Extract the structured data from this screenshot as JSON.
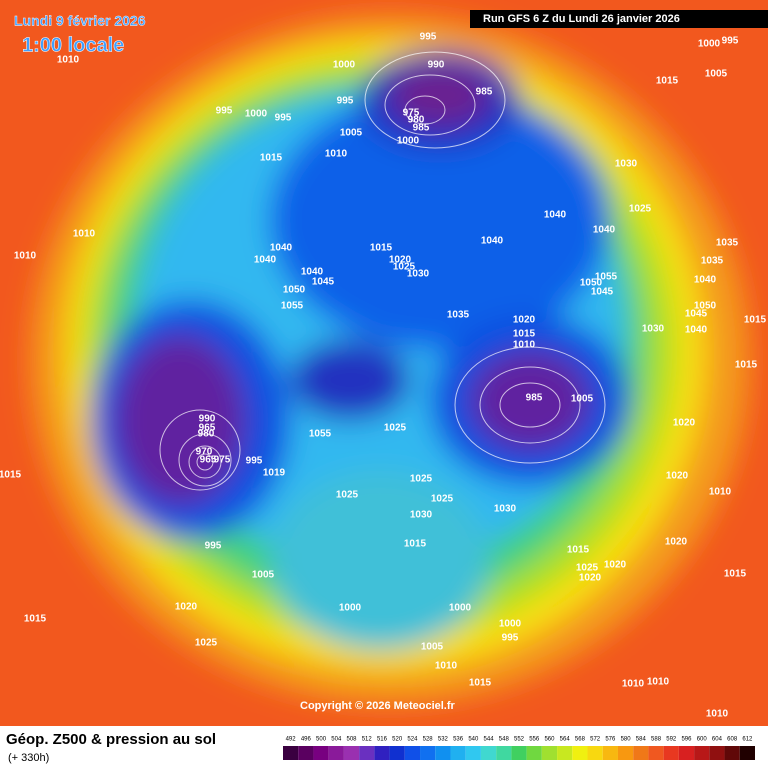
{
  "header": {
    "date": "Lundi 9 février 2026",
    "local_time": "1:00 locale",
    "run": "Run GFS 6 Z du Lundi 26 janvier 2026"
  },
  "map": {
    "isobar_labels": [
      "1010",
      "995",
      "1000",
      "995",
      "1000",
      "990",
      "1015",
      "1005",
      "985",
      "995",
      "1000",
      "995",
      "995",
      "975",
      "980",
      "985",
      "1005",
      "1000",
      "1015",
      "1010",
      "1030",
      "1025",
      "1040",
      "1040",
      "1040",
      "1010",
      "1010",
      "1040",
      "1040",
      "1015",
      "1020",
      "1025",
      "1030",
      "1035",
      "1035",
      "1040",
      "1040",
      "1045",
      "1050",
      "1055",
      "1055",
      "1050",
      "1045",
      "1050",
      "1045",
      "1040",
      "1035",
      "1020",
      "1015",
      "1010",
      "1030",
      "1015",
      "1015",
      "985",
      "1005",
      "990",
      "965",
      "980",
      "970",
      "965",
      "975",
      "995",
      "1019",
      "1025",
      "1055",
      "1020",
      "1025",
      "1025",
      "1025",
      "1030",
      "1030",
      "1020",
      "1010",
      "1015",
      "995",
      "1015",
      "1015",
      "1020",
      "1025",
      "1020",
      "1020",
      "1015",
      "1005",
      "1000",
      "1000",
      "1020",
      "1015",
      "1000",
      "995",
      "1025",
      "1005",
      "1010",
      "1015",
      "1010",
      "1010",
      "1010"
    ],
    "copyright": "Copyright © 2026 Meteociel.fr"
  },
  "footer": {
    "title": "Géop. Z500 & pression au sol",
    "lead_time": "(+ 330h)",
    "scale": [
      492,
      496,
      500,
      504,
      508,
      512,
      516,
      520,
      524,
      528,
      532,
      536,
      540,
      544,
      548,
      552,
      556,
      560,
      564,
      568,
      572,
      576,
      580,
      584,
      588,
      592,
      596,
      600,
      604,
      608,
      612
    ]
  }
}
